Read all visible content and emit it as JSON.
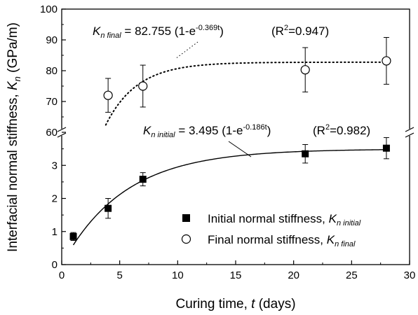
{
  "chart_data": {
    "type": "scatter",
    "xlabel": {
      "prefix": "Curing time, ",
      "var": "t",
      "suffix": " (days)"
    },
    "ylabel": {
      "prefix": "Interfacial normal stiffness, ",
      "var": "K",
      "sub": "n",
      "suffix": " (GPa/m)"
    },
    "xlim": [
      0,
      30
    ],
    "x_ticks": [
      "0",
      "5",
      "10",
      "15",
      "20",
      "25",
      "30"
    ],
    "y_lower": {
      "range": [
        0,
        4
      ],
      "ticks": [
        "0",
        "1",
        "2",
        "3"
      ]
    },
    "y_upper": {
      "range": [
        60,
        100
      ],
      "ticks": [
        "60",
        "70",
        "80",
        "90",
        "100"
      ]
    },
    "y_axis_break": [
      4,
      60
    ],
    "series": [
      {
        "name": "Initial normal stiffness,",
        "name_var": "K",
        "name_sub": "n initial",
        "marker": "filled-square",
        "points": [
          {
            "x": 1,
            "y": 0.85,
            "err": 0.12
          },
          {
            "x": 4,
            "y": 1.7,
            "err": 0.3
          },
          {
            "x": 7,
            "y": 2.58,
            "err": 0.2
          },
          {
            "x": 21,
            "y": 3.35,
            "err": 0.28
          },
          {
            "x": 28,
            "y": 3.52,
            "err": 0.32
          }
        ],
        "fit": {
          "a": 3.495,
          "b": 0.186,
          "x_range": [
            1,
            28
          ],
          "style": "solid",
          "label": {
            "lhs_var": "K",
            "lhs_sub": "n initial",
            "rhs": " = 3.495 (1-e",
            "exponent": "-0.186t",
            "close": ")",
            "r2": "(R",
            "r2_sup": "2",
            "r2_val": "=0.982)"
          }
        }
      },
      {
        "name": "Final normal stiffness,",
        "name_var": "K",
        "name_sub": "n final",
        "marker": "open-circle",
        "points": [
          {
            "x": 4,
            "y": 72,
            "err": 5.5
          },
          {
            "x": 7,
            "y": 75,
            "err": 6.8
          },
          {
            "x": 21,
            "y": 80.3,
            "err": 7.2
          },
          {
            "x": 28,
            "y": 83.2,
            "err": 7.6
          }
        ],
        "fit": {
          "a": 82.755,
          "b": 0.369,
          "x_range": [
            3.8,
            28
          ],
          "style": "dotted",
          "label": {
            "lhs_var": "K",
            "lhs_sub": "n final",
            "rhs": " = 82.755 (1-e",
            "exponent": "-0.369t",
            "close": ")",
            "r2": "(R",
            "r2_sup": "2",
            "r2_val": "=0.947)"
          }
        }
      }
    ],
    "legend_placement": "bottom-right",
    "grid": false
  }
}
